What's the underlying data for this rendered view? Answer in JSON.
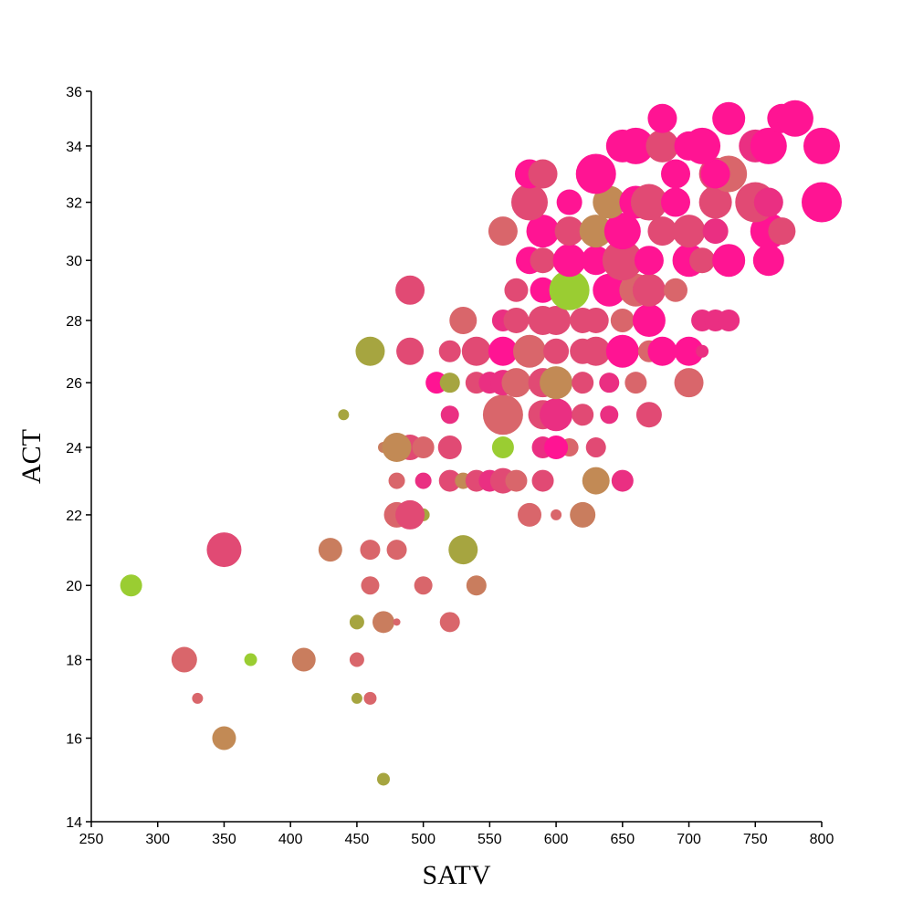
{
  "chart_data": {
    "type": "scatter",
    "title": "",
    "xlabel": "SATV",
    "ylabel": "ACT",
    "xlim": [
      250,
      800
    ],
    "ylim": [
      14,
      36
    ],
    "y_scale": "sqrt",
    "x_ticks": [
      "250",
      "300",
      "350",
      "400",
      "450",
      "500",
      "550",
      "600",
      "650",
      "700",
      "750",
      "800"
    ],
    "y_ticks": [
      "14",
      "16",
      "18",
      "20",
      "22",
      "24",
      "26",
      "28",
      "30",
      "32",
      "34",
      "36"
    ],
    "grid": false,
    "legend": "none",
    "color_low": "#9acd32",
    "color_high": "#ff1493",
    "points": [
      {
        "x": 470,
        "y": 15,
        "r": 7,
        "c": "#a6a540"
      },
      {
        "x": 350,
        "y": 16,
        "r": 13,
        "c": "#c28a55"
      },
      {
        "x": 330,
        "y": 17,
        "r": 6,
        "c": "#d9666b"
      },
      {
        "x": 450,
        "y": 17,
        "r": 6,
        "c": "#a6a540"
      },
      {
        "x": 460,
        "y": 17,
        "r": 7,
        "c": "#d9666b"
      },
      {
        "x": 320,
        "y": 18,
        "r": 14,
        "c": "#d9666b"
      },
      {
        "x": 370,
        "y": 18,
        "r": 7,
        "c": "#9acd32"
      },
      {
        "x": 410,
        "y": 18,
        "r": 13,
        "c": "#c97d5e"
      },
      {
        "x": 450,
        "y": 18,
        "r": 8,
        "c": "#d9666b"
      },
      {
        "x": 450,
        "y": 19,
        "r": 8,
        "c": "#a6a540"
      },
      {
        "x": 470,
        "y": 19,
        "r": 12,
        "c": "#c97d5e"
      },
      {
        "x": 480,
        "y": 19,
        "r": 4,
        "c": "#d9666b"
      },
      {
        "x": 520,
        "y": 19,
        "r": 11,
        "c": "#d9666b"
      },
      {
        "x": 280,
        "y": 20,
        "r": 12,
        "c": "#9acd32"
      },
      {
        "x": 460,
        "y": 20,
        "r": 10,
        "c": "#d9666b"
      },
      {
        "x": 500,
        "y": 20,
        "r": 10,
        "c": "#d9666b"
      },
      {
        "x": 540,
        "y": 20,
        "r": 11,
        "c": "#c97d5e"
      },
      {
        "x": 350,
        "y": 21,
        "r": 19,
        "c": "#e14a74"
      },
      {
        "x": 430,
        "y": 21,
        "r": 13,
        "c": "#c97d5e"
      },
      {
        "x": 460,
        "y": 21,
        "r": 11,
        "c": "#d9666b"
      },
      {
        "x": 480,
        "y": 21,
        "r": 11,
        "c": "#d9666b"
      },
      {
        "x": 530,
        "y": 21,
        "r": 16,
        "c": "#a6a540"
      },
      {
        "x": 500,
        "y": 22,
        "r": 7,
        "c": "#a6a540"
      },
      {
        "x": 480,
        "y": 22,
        "r": 14,
        "c": "#d9666b"
      },
      {
        "x": 490,
        "y": 22,
        "r": 16,
        "c": "#e14a74"
      },
      {
        "x": 580,
        "y": 22,
        "r": 13,
        "c": "#d9666b"
      },
      {
        "x": 600,
        "y": 22,
        "r": 6,
        "c": "#d9666b"
      },
      {
        "x": 620,
        "y": 22,
        "r": 14,
        "c": "#c97d5e"
      },
      {
        "x": 480,
        "y": 23,
        "r": 9,
        "c": "#d9666b"
      },
      {
        "x": 500,
        "y": 23,
        "r": 9,
        "c": "#ea2f82"
      },
      {
        "x": 520,
        "y": 23,
        "r": 12,
        "c": "#e14a74"
      },
      {
        "x": 530,
        "y": 23,
        "r": 9,
        "c": "#c28a55"
      },
      {
        "x": 540,
        "y": 23,
        "r": 12,
        "c": "#e14a74"
      },
      {
        "x": 550,
        "y": 23,
        "r": 12,
        "c": "#ea2f82"
      },
      {
        "x": 560,
        "y": 23,
        "r": 14,
        "c": "#e14a74"
      },
      {
        "x": 570,
        "y": 23,
        "r": 12,
        "c": "#d9666b"
      },
      {
        "x": 590,
        "y": 23,
        "r": 12,
        "c": "#e14a74"
      },
      {
        "x": 630,
        "y": 23,
        "r": 15,
        "c": "#c28a55"
      },
      {
        "x": 650,
        "y": 23,
        "r": 12,
        "c": "#ea2f82"
      },
      {
        "x": 470,
        "y": 24,
        "r": 6,
        "c": "#c97d5e"
      },
      {
        "x": 490,
        "y": 24,
        "r": 14,
        "c": "#e14a74"
      },
      {
        "x": 500,
        "y": 24,
        "r": 12,
        "c": "#d9666b"
      },
      {
        "x": 520,
        "y": 24,
        "r": 13,
        "c": "#e14a74"
      },
      {
        "x": 560,
        "y": 24,
        "r": 12,
        "c": "#9acd32"
      },
      {
        "x": 590,
        "y": 24,
        "r": 12,
        "c": "#ea2f82"
      },
      {
        "x": 610,
        "y": 24,
        "r": 10,
        "c": "#d9666b"
      },
      {
        "x": 630,
        "y": 24,
        "r": 11,
        "c": "#e14a74"
      },
      {
        "x": 480,
        "y": 24,
        "r": 16,
        "c": "#c28a55"
      },
      {
        "x": 600,
        "y": 24,
        "r": 13,
        "c": "#ff1493"
      },
      {
        "x": 440,
        "y": 25,
        "r": 6,
        "c": "#a6a540"
      },
      {
        "x": 520,
        "y": 25,
        "r": 10,
        "c": "#ea2f82"
      },
      {
        "x": 560,
        "y": 25,
        "r": 22,
        "c": "#d9666b"
      },
      {
        "x": 590,
        "y": 25,
        "r": 16,
        "c": "#e14a74"
      },
      {
        "x": 600,
        "y": 25,
        "r": 18,
        "c": "#ea2f82"
      },
      {
        "x": 620,
        "y": 25,
        "r": 12,
        "c": "#e14a74"
      },
      {
        "x": 640,
        "y": 25,
        "r": 10,
        "c": "#ea2f82"
      },
      {
        "x": 670,
        "y": 25,
        "r": 14,
        "c": "#e14a74"
      },
      {
        "x": 510,
        "y": 26,
        "r": 12,
        "c": "#ff1493"
      },
      {
        "x": 520,
        "y": 26,
        "r": 11,
        "c": "#a6a540"
      },
      {
        "x": 540,
        "y": 26,
        "r": 12,
        "c": "#e14a74"
      },
      {
        "x": 550,
        "y": 26,
        "r": 12,
        "c": "#ea2f82"
      },
      {
        "x": 560,
        "y": 26,
        "r": 14,
        "c": "#ea2f82"
      },
      {
        "x": 570,
        "y": 26,
        "r": 16,
        "c": "#d9666b"
      },
      {
        "x": 590,
        "y": 26,
        "r": 16,
        "c": "#e14a74"
      },
      {
        "x": 600,
        "y": 26,
        "r": 18,
        "c": "#c28a55"
      },
      {
        "x": 620,
        "y": 26,
        "r": 12,
        "c": "#e14a74"
      },
      {
        "x": 640,
        "y": 26,
        "r": 11,
        "c": "#ea2f82"
      },
      {
        "x": 660,
        "y": 26,
        "r": 12,
        "c": "#d9666b"
      },
      {
        "x": 700,
        "y": 26,
        "r": 16,
        "c": "#d9666b"
      },
      {
        "x": 460,
        "y": 27,
        "r": 16,
        "c": "#a6a540"
      },
      {
        "x": 490,
        "y": 27,
        "r": 15,
        "c": "#e14a74"
      },
      {
        "x": 520,
        "y": 27,
        "r": 12,
        "c": "#e14a74"
      },
      {
        "x": 540,
        "y": 27,
        "r": 16,
        "c": "#e14a74"
      },
      {
        "x": 560,
        "y": 27,
        "r": 16,
        "c": "#ff1493"
      },
      {
        "x": 580,
        "y": 27,
        "r": 18,
        "c": "#d9666b"
      },
      {
        "x": 600,
        "y": 27,
        "r": 14,
        "c": "#e14a74"
      },
      {
        "x": 620,
        "y": 27,
        "r": 14,
        "c": "#e14a74"
      },
      {
        "x": 630,
        "y": 27,
        "r": 16,
        "c": "#e14a74"
      },
      {
        "x": 650,
        "y": 27,
        "r": 18,
        "c": "#ff1493"
      },
      {
        "x": 670,
        "y": 27,
        "r": 12,
        "c": "#d9666b"
      },
      {
        "x": 680,
        "y": 27,
        "r": 16,
        "c": "#ff1493"
      },
      {
        "x": 700,
        "y": 27,
        "r": 16,
        "c": "#ff1493"
      },
      {
        "x": 710,
        "y": 27,
        "r": 7,
        "c": "#ea2f82"
      },
      {
        "x": 530,
        "y": 28,
        "r": 15,
        "c": "#d9666b"
      },
      {
        "x": 560,
        "y": 28,
        "r": 12,
        "c": "#ea2f82"
      },
      {
        "x": 570,
        "y": 28,
        "r": 14,
        "c": "#e14a74"
      },
      {
        "x": 590,
        "y": 28,
        "r": 16,
        "c": "#e14a74"
      },
      {
        "x": 600,
        "y": 28,
        "r": 16,
        "c": "#e14a74"
      },
      {
        "x": 620,
        "y": 28,
        "r": 14,
        "c": "#e14a74"
      },
      {
        "x": 630,
        "y": 28,
        "r": 14,
        "c": "#e14a74"
      },
      {
        "x": 650,
        "y": 28,
        "r": 13,
        "c": "#d9666b"
      },
      {
        "x": 670,
        "y": 28,
        "r": 18,
        "c": "#ff1493"
      },
      {
        "x": 710,
        "y": 28,
        "r": 12,
        "c": "#ea2f82"
      },
      {
        "x": 720,
        "y": 28,
        "r": 12,
        "c": "#ea2f82"
      },
      {
        "x": 730,
        "y": 28,
        "r": 12,
        "c": "#ea2f82"
      },
      {
        "x": 490,
        "y": 29,
        "r": 16,
        "c": "#e14a74"
      },
      {
        "x": 570,
        "y": 29,
        "r": 13,
        "c": "#e14a74"
      },
      {
        "x": 590,
        "y": 29,
        "r": 14,
        "c": "#ff1493"
      },
      {
        "x": 610,
        "y": 29,
        "r": 22,
        "c": "#9acd32"
      },
      {
        "x": 640,
        "y": 29,
        "r": 18,
        "c": "#ff1493"
      },
      {
        "x": 660,
        "y": 29,
        "r": 18,
        "c": "#d9666b"
      },
      {
        "x": 670,
        "y": 29,
        "r": 18,
        "c": "#e14a74"
      },
      {
        "x": 690,
        "y": 29,
        "r": 13,
        "c": "#d9666b"
      },
      {
        "x": 560,
        "y": 31,
        "r": 16,
        "c": "#d9666b"
      },
      {
        "x": 580,
        "y": 30,
        "r": 15,
        "c": "#ff1493"
      },
      {
        "x": 590,
        "y": 30,
        "r": 14,
        "c": "#e14a74"
      },
      {
        "x": 610,
        "y": 30,
        "r": 18,
        "c": "#ff1493"
      },
      {
        "x": 630,
        "y": 30,
        "r": 16,
        "c": "#ff1493"
      },
      {
        "x": 650,
        "y": 30,
        "r": 22,
        "c": "#e14a74"
      },
      {
        "x": 670,
        "y": 30,
        "r": 16,
        "c": "#ff1493"
      },
      {
        "x": 700,
        "y": 30,
        "r": 18,
        "c": "#ff1493"
      },
      {
        "x": 710,
        "y": 30,
        "r": 14,
        "c": "#e14a74"
      },
      {
        "x": 730,
        "y": 30,
        "r": 18,
        "c": "#ff1493"
      },
      {
        "x": 760,
        "y": 30,
        "r": 17,
        "c": "#ff1493"
      },
      {
        "x": 590,
        "y": 31,
        "r": 18,
        "c": "#ff1493"
      },
      {
        "x": 610,
        "y": 31,
        "r": 16,
        "c": "#e14a74"
      },
      {
        "x": 630,
        "y": 31,
        "r": 18,
        "c": "#c28a55"
      },
      {
        "x": 650,
        "y": 31,
        "r": 20,
        "c": "#ff1493"
      },
      {
        "x": 680,
        "y": 31,
        "r": 16,
        "c": "#e14a74"
      },
      {
        "x": 700,
        "y": 31,
        "r": 18,
        "c": "#e14a74"
      },
      {
        "x": 720,
        "y": 31,
        "r": 14,
        "c": "#ea2f82"
      },
      {
        "x": 760,
        "y": 31,
        "r": 20,
        "c": "#ff1493"
      },
      {
        "x": 770,
        "y": 31,
        "r": 15,
        "c": "#e14a74"
      },
      {
        "x": 580,
        "y": 32,
        "r": 20,
        "c": "#e14a74"
      },
      {
        "x": 610,
        "y": 32,
        "r": 14,
        "c": "#ff1493"
      },
      {
        "x": 640,
        "y": 32,
        "r": 18,
        "c": "#c28a55"
      },
      {
        "x": 660,
        "y": 32,
        "r": 18,
        "c": "#ff1493"
      },
      {
        "x": 670,
        "y": 32,
        "r": 20,
        "c": "#e14a74"
      },
      {
        "x": 690,
        "y": 32,
        "r": 16,
        "c": "#ff1493"
      },
      {
        "x": 720,
        "y": 32,
        "r": 18,
        "c": "#e14a74"
      },
      {
        "x": 750,
        "y": 32,
        "r": 22,
        "c": "#e14a74"
      },
      {
        "x": 760,
        "y": 32,
        "r": 16,
        "c": "#ea2f82"
      },
      {
        "x": 800,
        "y": 32,
        "r": 22,
        "c": "#ff1493"
      },
      {
        "x": 580,
        "y": 33,
        "r": 16,
        "c": "#ff1493"
      },
      {
        "x": 590,
        "y": 33,
        "r": 16,
        "c": "#e14a74"
      },
      {
        "x": 630,
        "y": 33,
        "r": 22,
        "c": "#ff1493"
      },
      {
        "x": 690,
        "y": 33,
        "r": 16,
        "c": "#ff1493"
      },
      {
        "x": 720,
        "y": 33,
        "r": 18,
        "c": "#e14a74"
      },
      {
        "x": 730,
        "y": 33,
        "r": 20,
        "c": "#d9666b"
      },
      {
        "x": 720,
        "y": 33,
        "r": 16,
        "c": "#ff1493"
      },
      {
        "x": 650,
        "y": 34,
        "r": 18,
        "c": "#ff1493"
      },
      {
        "x": 660,
        "y": 34,
        "r": 20,
        "c": "#ff1493"
      },
      {
        "x": 680,
        "y": 34,
        "r": 18,
        "c": "#e14a74"
      },
      {
        "x": 700,
        "y": 34,
        "r": 16,
        "c": "#ff1493"
      },
      {
        "x": 710,
        "y": 34,
        "r": 20,
        "c": "#ff1493"
      },
      {
        "x": 750,
        "y": 34,
        "r": 18,
        "c": "#ea2f82"
      },
      {
        "x": 760,
        "y": 34,
        "r": 20,
        "c": "#ff1493"
      },
      {
        "x": 800,
        "y": 34,
        "r": 20,
        "c": "#ff1493"
      },
      {
        "x": 680,
        "y": 35,
        "r": 16,
        "c": "#ff1493"
      },
      {
        "x": 730,
        "y": 35,
        "r": 18,
        "c": "#ff1493"
      },
      {
        "x": 770,
        "y": 35,
        "r": 16,
        "c": "#ff1493"
      },
      {
        "x": 780,
        "y": 35,
        "r": 20,
        "c": "#ff1493"
      }
    ]
  }
}
